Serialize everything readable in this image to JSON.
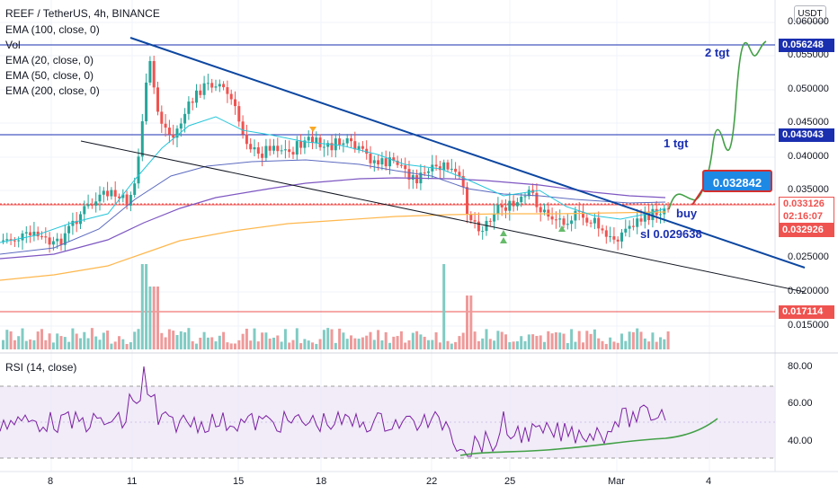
{
  "header": {
    "symbol_title": "REEF / TetherUS, 4h, BINANCE",
    "indicators": [
      "EMA (100, close, 0)",
      "Vol",
      "EMA (20, close, 0)",
      "EMA (50, close, 0)",
      "EMA (200, close, 0)"
    ],
    "currency_button": "USDT"
  },
  "rsi_pane": {
    "label": "RSI (14, close)",
    "ticks": [
      "80.00",
      "60.00",
      "40.00"
    ]
  },
  "price_axis": {
    "ticks": [
      "0.060000",
      "0.055000",
      "0.050000",
      "0.045000",
      "0.040000",
      "0.035000",
      "0.025000",
      "0.020000",
      "0.015000"
    ]
  },
  "price_labels": {
    "tgt2": "0.056248",
    "tgt1": "0.043043",
    "current": "0.033126",
    "countdown": "02:16:07",
    "sl_line": "0.032926",
    "support": "0.017114"
  },
  "annotations": {
    "tgt2": "2 tgt",
    "tgt1": "1 tgt",
    "buy": "buy",
    "sl": "sl 0.029638",
    "callout": "0.032842"
  },
  "time_axis": {
    "labels": [
      "8",
      "11",
      "15",
      "18",
      "22",
      "25",
      "Mar",
      "4"
    ]
  },
  "colors": {
    "up": "#26a69a",
    "down": "#ef5350",
    "trend_blue": "#0d47a1",
    "ema20": "#26c6da",
    "ema50": "#5c6bc0",
    "ema100": "#7e57c2",
    "ema200": "#ffb74d",
    "projection": "#43a047",
    "rsi": "#7b1fa2"
  }
}
